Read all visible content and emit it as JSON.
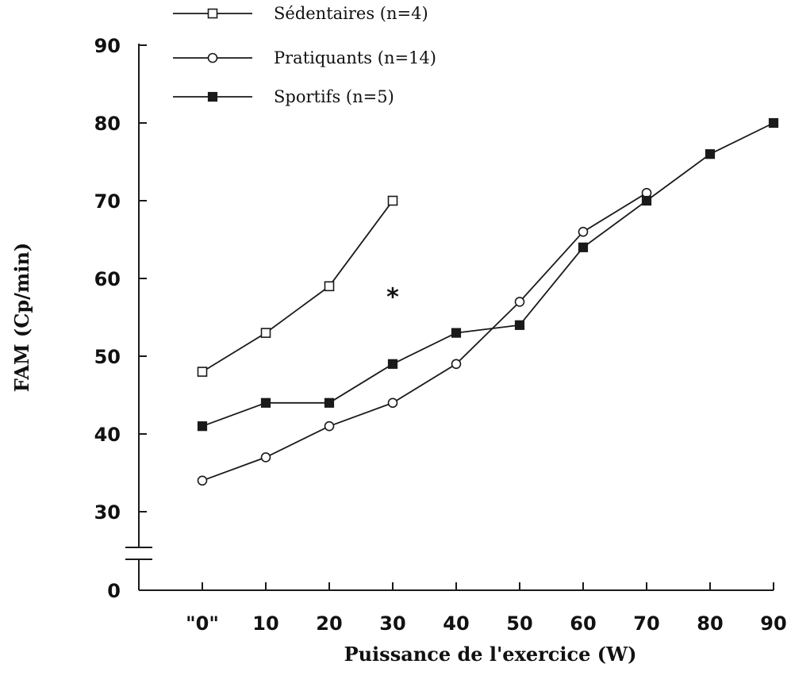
{
  "chart_data": {
    "type": "line",
    "xlabel": "Puissance de l'exercice (W)",
    "ylabel": "FAM (Cp/min)",
    "x_ticks": [
      "\"0\"",
      "10",
      "20",
      "30",
      "40",
      "50",
      "60",
      "70",
      "80",
      "90"
    ],
    "y_ticks": [
      "0",
      "30",
      "40",
      "50",
      "60",
      "70",
      "80",
      "90"
    ],
    "xlim": [
      0,
      90
    ],
    "ylim": [
      30,
      90
    ],
    "y_axis_break": true,
    "grid": false,
    "legend_position": "top-center",
    "annotation": {
      "text": "*",
      "x": 30,
      "y": 58
    },
    "series": [
      {
        "name": "Sédentaires (n=4)",
        "marker": "open-square",
        "x": [
          0,
          10,
          20,
          30
        ],
        "values": [
          48,
          53,
          59,
          70
        ]
      },
      {
        "name": "Pratiquants (n=14)",
        "marker": "open-circle",
        "x": [
          0,
          10,
          20,
          30,
          40,
          50,
          60,
          70
        ],
        "values": [
          34,
          37,
          41,
          44,
          49,
          57,
          66,
          71
        ]
      },
      {
        "name": "Sportifs (n=5)",
        "marker": "filled-square",
        "x": [
          0,
          10,
          20,
          30,
          40,
          50,
          60,
          70,
          80,
          90
        ],
        "values": [
          41,
          44,
          44,
          49,
          53,
          54,
          64,
          70,
          76,
          80
        ]
      }
    ],
    "colors": {
      "line": "#1a1a1a",
      "marker_fill": "#1a1a1a",
      "marker_open": "#ffffff"
    }
  }
}
